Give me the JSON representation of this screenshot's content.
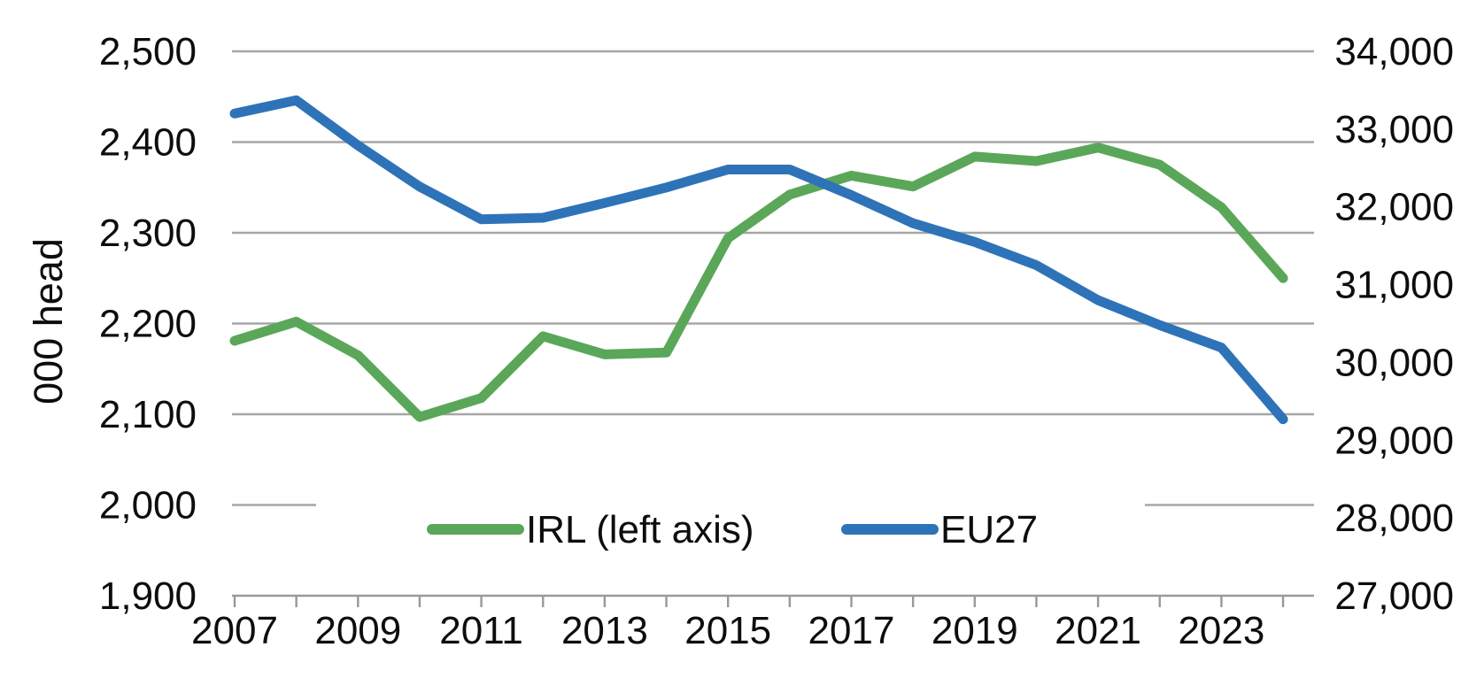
{
  "chart_data": {
    "type": "line",
    "title": "",
    "x": [
      2007,
      2008,
      2009,
      2010,
      2011,
      2012,
      2013,
      2014,
      2015,
      2016,
      2017,
      2018,
      2019,
      2020,
      2021,
      2022,
      2023,
      2024
    ],
    "x_tick_labels": [
      "2007",
      "2009",
      "2011",
      "2013",
      "2015",
      "2017",
      "2019",
      "2021",
      "2023"
    ],
    "series": [
      {
        "name": "IRL (left axis)",
        "axis": "left",
        "color": "#5AA75A",
        "values": [
          2181,
          2202,
          2165,
          2097,
          2118,
          2186,
          2166,
          2168,
          2294,
          2342,
          2363,
          2351,
          2384,
          2379,
          2394,
          2375,
          2328,
          2250
        ]
      },
      {
        "name": "EU27",
        "axis": "right",
        "color": "#2E73B8",
        "values": [
          33200,
          33370,
          32790,
          32260,
          31840,
          31860,
          32050,
          32250,
          32480,
          32480,
          32150,
          31790,
          31550,
          31250,
          30800,
          30480,
          30190,
          29270
        ]
      }
    ],
    "left_axis": {
      "title": "000 head",
      "min": 1900,
      "max": 2500,
      "step": 100,
      "tick_labels": [
        "2,500",
        "2,400",
        "2,300",
        "2,200",
        "2,100",
        "2,000",
        "1,900"
      ]
    },
    "right_axis": {
      "title": "",
      "min": 27000,
      "max": 34000,
      "step": 1000,
      "tick_labels": [
        "34,000",
        "33,000",
        "32,000",
        "31,000",
        "30,000",
        "29,000",
        "28,000",
        "27,000"
      ]
    },
    "legend": {
      "position": "bottom-center",
      "items": [
        {
          "label": "IRL (left axis)",
          "color": "#5AA75A"
        },
        {
          "label": "EU27",
          "color": "#2E73B8"
        }
      ]
    },
    "grid": "horizontal",
    "colors": {
      "irl": "#5AA75A",
      "eu27": "#2E73B8",
      "gridline": "#A6A6A6",
      "axis": "#999999",
      "text": "#0D0D0D",
      "background": "#FFFFFF"
    }
  }
}
